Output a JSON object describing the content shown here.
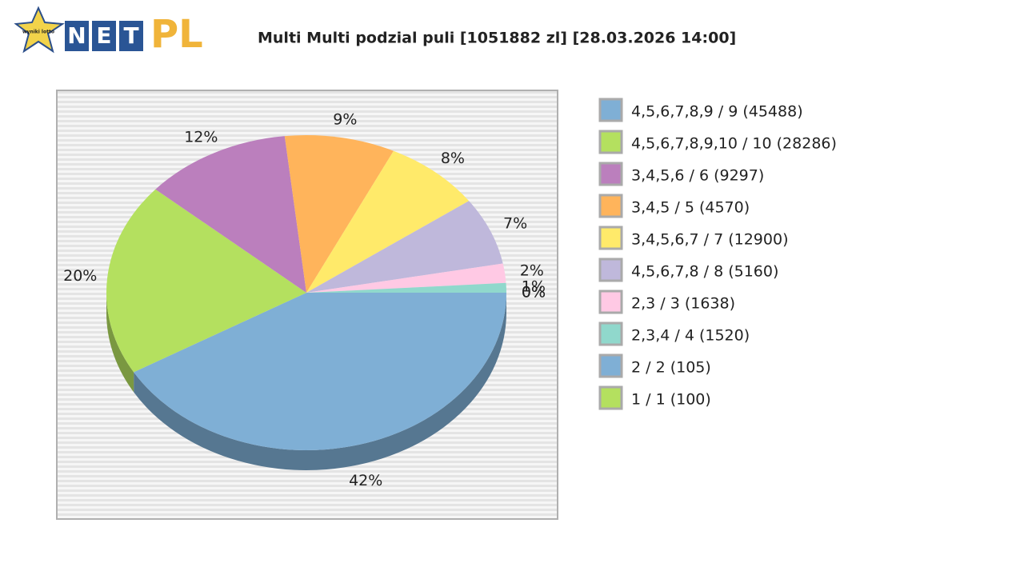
{
  "logo": {
    "badge": "wyniki lotto",
    "letters": [
      "N",
      "E",
      "T"
    ],
    "suffix": "PL"
  },
  "chart_data": {
    "type": "pie",
    "title": "Multi Multi podzial puli [1051882 zl] [28.03.2026 14:00]",
    "categories": [
      "4,5,6,7,8,9 / 9 (45488)",
      "4,5,6,7,8,9,10 / 10 (28286)",
      "3,4,5,6 / 6 (9297)",
      "3,4,5 / 5 (4570)",
      "3,4,5,6,7 / 7 (12900)",
      "4,5,6,7,8 / 8 (5160)",
      "2,3 / 3 (1638)",
      "2,3,4 / 4 (1520)",
      "2 / 2 (105)",
      "1 / 1 (100)"
    ],
    "values": [
      42,
      20,
      12,
      9,
      8,
      7,
      2,
      1,
      0,
      0
    ],
    "value_labels": [
      "42%",
      "20%",
      "12%",
      "9%",
      "8%",
      "7%",
      "2%",
      "1%",
      "0%",
      "0%"
    ],
    "colors": [
      "#7fafd5",
      "#b4e05f",
      "#bb7fbd",
      "#ffb45b",
      "#ffea6a",
      "#bfb8db",
      "#ffc9e4",
      "#90d8cc",
      "#7fafd5",
      "#b4e05f"
    ],
    "legend": "right"
  }
}
